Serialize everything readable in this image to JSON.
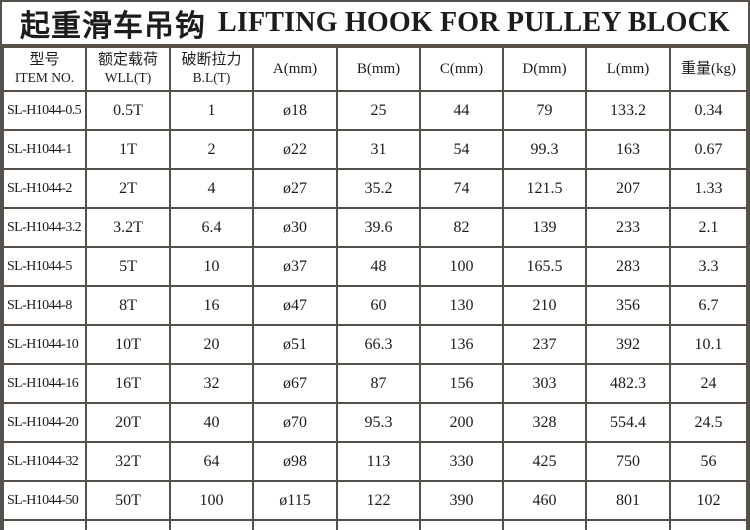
{
  "title": {
    "zh": "起重滑车吊钩",
    "en": "LIFTING HOOK FOR PULLEY BLOCK"
  },
  "table": {
    "columns": [
      {
        "line1": "型号",
        "line2": "ITEM NO."
      },
      {
        "line1": "额定载荷",
        "line2": "WLL(T)"
      },
      {
        "line1": "破断拉力",
        "line2": "B.L(T)"
      },
      {
        "line1": "A(mm)"
      },
      {
        "line1": "B(mm)"
      },
      {
        "line1": "C(mm)"
      },
      {
        "line1": "D(mm)"
      },
      {
        "line1": "L(mm)"
      },
      {
        "line1": "重量(kg)"
      }
    ],
    "rows": [
      [
        "SL-H1044-0.5",
        "0.5T",
        "1",
        "ø18",
        "25",
        "44",
        "79",
        "133.2",
        "0.34"
      ],
      [
        "SL-H1044-1",
        "1T",
        "2",
        "ø22",
        "31",
        "54",
        "99.3",
        "163",
        "0.67"
      ],
      [
        "SL-H1044-2",
        "2T",
        "4",
        "ø27",
        "35.2",
        "74",
        "121.5",
        "207",
        "1.33"
      ],
      [
        "SL-H1044-3.2",
        "3.2T",
        "6.4",
        "ø30",
        "39.6",
        "82",
        "139",
        "233",
        "2.1"
      ],
      [
        "SL-H1044-5",
        "5T",
        "10",
        "ø37",
        "48",
        "100",
        "165.5",
        "283",
        "3.3"
      ],
      [
        "SL-H1044-8",
        "8T",
        "16",
        "ø47",
        "60",
        "130",
        "210",
        "356",
        "6.7"
      ],
      [
        "SL-H1044-10",
        "10T",
        "20",
        "ø51",
        "66.3",
        "136",
        "237",
        "392",
        "10.1"
      ],
      [
        "SL-H1044-16",
        "16T",
        "32",
        "ø67",
        "87",
        "156",
        "303",
        "482.3",
        "24"
      ],
      [
        "SL-H1044-20",
        "20T",
        "40",
        "ø70",
        "95.3",
        "200",
        "328",
        "554.4",
        "24.5"
      ],
      [
        "SL-H1044-32",
        "32T",
        "64",
        "ø98",
        "113",
        "330",
        "425",
        "750",
        "56"
      ],
      [
        "SL-H1044-50",
        "50T",
        "100",
        "ø115",
        "122",
        "390",
        "460",
        "801",
        "102"
      ]
    ]
  },
  "colors": {
    "border": "#56504a",
    "text": "#1c1c1c",
    "background": "#ffffff"
  }
}
